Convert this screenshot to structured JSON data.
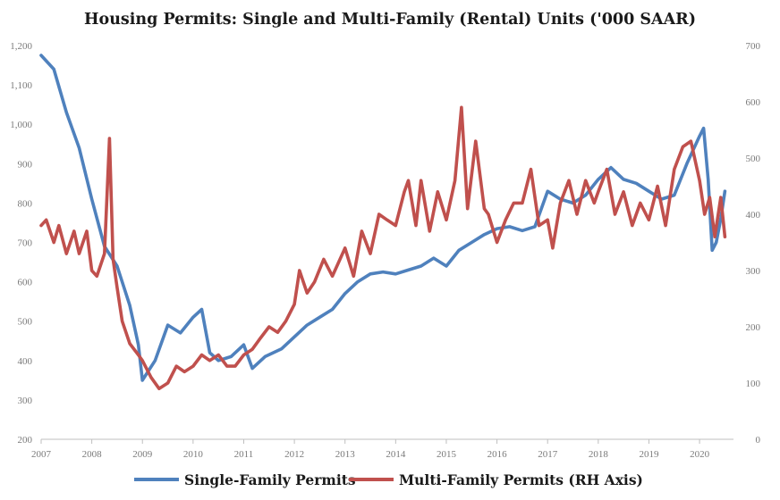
{
  "chart_data": {
    "type": "line",
    "title": "Housing Permits: Single and Multi-Family (Rental) Units  ('000 SAAR)",
    "colors": {
      "single": "#4f81bd",
      "multi": "#c0504d"
    },
    "grid": false,
    "legend": "bottom",
    "x_axis": {
      "min": 2007,
      "max": 2020.67,
      "ticks": [
        2007,
        2008,
        2009,
        2010,
        2011,
        2012,
        2013,
        2014,
        2015,
        2016,
        2017,
        2018,
        2019,
        2020
      ]
    },
    "y_left": {
      "min": 200,
      "max": 1200,
      "ticks": [
        200,
        300,
        400,
        500,
        600,
        700,
        800,
        900,
        1000,
        1100,
        1200
      ],
      "tick_labels": [
        "200",
        "300",
        "400",
        "500",
        "600",
        "700",
        "800",
        "900",
        "1,000",
        "1,100",
        "1,200"
      ]
    },
    "y_right": {
      "min": 0,
      "max": 700,
      "ticks": [
        0,
        100,
        200,
        300,
        400,
        500,
        600,
        700
      ],
      "tick_labels": [
        "0",
        "100",
        "200",
        "300",
        "400",
        "500",
        "600",
        "700"
      ]
    },
    "series": [
      {
        "name": "Single-Family Permits",
        "axis": "left",
        "x": [
          2007.0,
          2007.25,
          2007.5,
          2007.75,
          2008.0,
          2008.25,
          2008.5,
          2008.75,
          2008.92,
          2009.0,
          2009.25,
          2009.5,
          2009.75,
          2010.0,
          2010.17,
          2010.33,
          2010.5,
          2010.75,
          2011.0,
          2011.17,
          2011.42,
          2011.75,
          2012.0,
          2012.25,
          2012.5,
          2012.75,
          2013.0,
          2013.25,
          2013.5,
          2013.75,
          2014.0,
          2014.25,
          2014.5,
          2014.75,
          2015.0,
          2015.25,
          2015.5,
          2015.75,
          2016.0,
          2016.25,
          2016.5,
          2016.75,
          2017.0,
          2017.25,
          2017.5,
          2017.75,
          2018.0,
          2018.25,
          2018.5,
          2018.75,
          2019.0,
          2019.25,
          2019.5,
          2019.75,
          2020.0,
          2020.08,
          2020.17,
          2020.25,
          2020.33,
          2020.42,
          2020.5
        ],
        "values": [
          1175,
          1140,
          1030,
          940,
          810,
          690,
          640,
          540,
          440,
          350,
          400,
          490,
          470,
          510,
          530,
          420,
          400,
          410,
          440,
          380,
          410,
          430,
          460,
          490,
          510,
          530,
          570,
          600,
          620,
          625,
          620,
          630,
          640,
          660,
          640,
          680,
          700,
          720,
          735,
          740,
          730,
          740,
          830,
          810,
          800,
          820,
          860,
          890,
          860,
          850,
          830,
          810,
          820,
          900,
          970,
          990,
          860,
          680,
          700,
          760,
          830
        ],
        "label_left_ticks": [
          "200",
          "300",
          "400",
          "500",
          "600",
          "700",
          "800",
          "900",
          "1,000",
          "1,100",
          "1,200"
        ]
      },
      {
        "name": "Multi-Family Permits (RH Axis)",
        "axis": "right",
        "x": [
          2007.0,
          2007.1,
          2007.25,
          2007.35,
          2007.5,
          2007.65,
          2007.75,
          2007.9,
          2008.0,
          2008.1,
          2008.25,
          2008.35,
          2008.42,
          2008.5,
          2008.6,
          2008.75,
          2008.92,
          2009.0,
          2009.17,
          2009.33,
          2009.5,
          2009.67,
          2009.83,
          2010.0,
          2010.17,
          2010.33,
          2010.5,
          2010.67,
          2010.83,
          2011.0,
          2011.17,
          2011.33,
          2011.5,
          2011.67,
          2011.83,
          2012.0,
          2012.1,
          2012.25,
          2012.4,
          2012.58,
          2012.75,
          2012.9,
          2013.0,
          2013.17,
          2013.33,
          2013.5,
          2013.67,
          2013.83,
          2014.0,
          2014.17,
          2014.25,
          2014.4,
          2014.5,
          2014.67,
          2014.83,
          2015.0,
          2015.17,
          2015.3,
          2015.42,
          2015.58,
          2015.75,
          2015.83,
          2016.0,
          2016.17,
          2016.33,
          2016.5,
          2016.67,
          2016.83,
          2017.0,
          2017.1,
          2017.25,
          2017.42,
          2017.58,
          2017.75,
          2017.92,
          2018.0,
          2018.17,
          2018.33,
          2018.5,
          2018.67,
          2018.83,
          2019.0,
          2019.17,
          2019.33,
          2019.5,
          2019.67,
          2019.83,
          2020.0,
          2020.1,
          2020.2,
          2020.3,
          2020.42,
          2020.5
        ],
        "values": [
          380,
          390,
          350,
          380,
          330,
          370,
          330,
          370,
          300,
          290,
          330,
          535,
          320,
          270,
          210,
          170,
          150,
          140,
          110,
          90,
          100,
          130,
          120,
          130,
          150,
          140,
          150,
          130,
          130,
          150,
          160,
          180,
          200,
          190,
          210,
          240,
          300,
          260,
          280,
          320,
          290,
          320,
          340,
          290,
          370,
          330,
          400,
          390,
          380,
          440,
          460,
          380,
          460,
          370,
          440,
          390,
          460,
          590,
          410,
          530,
          410,
          400,
          350,
          390,
          420,
          420,
          480,
          380,
          390,
          340,
          420,
          460,
          400,
          460,
          420,
          440,
          480,
          400,
          440,
          380,
          420,
          390,
          450,
          380,
          480,
          520,
          530,
          460,
          400,
          430,
          360,
          430,
          360
        ]
      }
    ]
  }
}
